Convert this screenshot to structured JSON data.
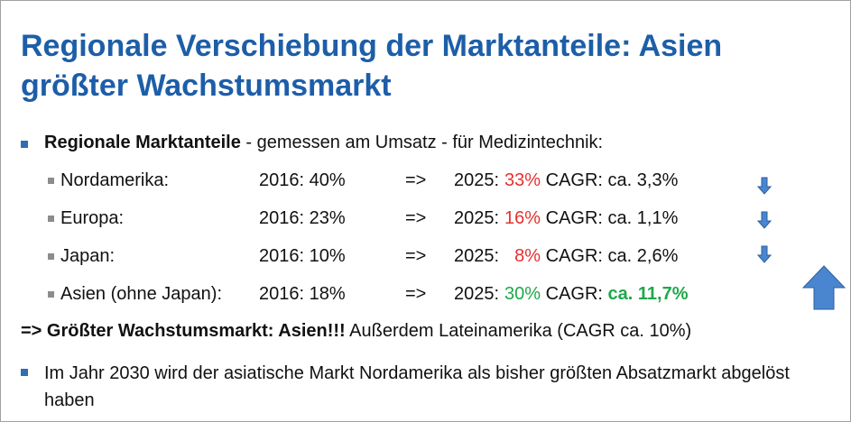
{
  "title": "Regionale Verschiebung der Marktanteile: Asien größter Wachstumsmarkt",
  "bullet1": {
    "bold": "Regionale Marktanteile",
    "rest": " - gemessen am Umsatz - für Medizintechnik:"
  },
  "rows": [
    {
      "region": "Nordamerika:",
      "y2016": "2016: 40%",
      "arrow": "=>",
      "y2025": "2025:",
      "share2025": "33%",
      "cagr_label": "CAGR:",
      "cagr_value": "ca. 3,3%"
    },
    {
      "region": "Europa:",
      "y2016": "2016: 23%",
      "arrow": "=>",
      "y2025": "2025:",
      "share2025": "16%",
      "cagr_label": "CAGR:",
      "cagr_value": "ca. 1,1%"
    },
    {
      "region": "Japan:",
      "y2016": "2016: 10%",
      "arrow": "=>",
      "y2025": "2025:",
      "share2025": "8%",
      "cagr_label": "CAGR:",
      "cagr_value": "ca. 2,6%"
    },
    {
      "region": "Asien (ohne Japan):",
      "y2016": "2016: 18%",
      "arrow": "=>",
      "y2025": "2025:",
      "share2025": "30%",
      "cagr_label": "CAGR:",
      "cagr_value": "ca. 11,7%"
    }
  ],
  "conclusion": {
    "bold": "=> Größter Wachstumsmarkt: Asien!!!",
    "rest": " Außerdem Lateinamerika (CAGR ca. 10%)"
  },
  "bullet2": "Im Jahr 2030 wird der asiatische Markt Nordamerika als bisher größten Absatzmarkt abgelöst haben"
}
